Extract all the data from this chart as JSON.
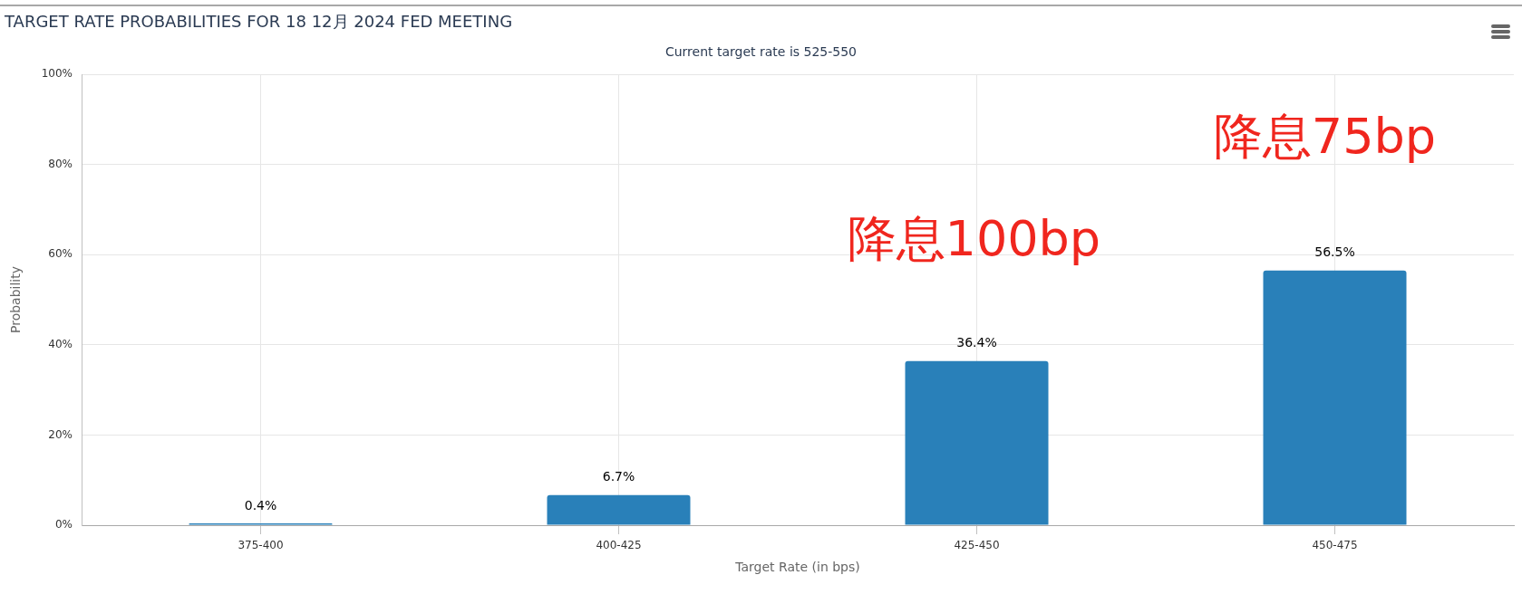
{
  "chart_data": {
    "type": "bar",
    "title": "TARGET RATE PROBABILITIES FOR 18 12月 2024 FED MEETING",
    "subtitle": "Current target rate is 525-550",
    "xlabel": "Target Rate (in bps)",
    "ylabel": "Probability",
    "categories": [
      "375-400",
      "400-425",
      "425-450",
      "450-475"
    ],
    "values": [
      0.4,
      6.7,
      36.4,
      56.5
    ],
    "color": "#2980b9",
    "value_labels": [
      "0.4%",
      "6.7%",
      "36.4%",
      "56.5%"
    ],
    "ylim": [
      0,
      100
    ],
    "yticks": [
      {
        "value": 0,
        "label": "0%"
      },
      {
        "value": 20,
        "label": "20%"
      },
      {
        "value": 40,
        "label": "40%"
      },
      {
        "value": 60,
        "label": "60%"
      },
      {
        "value": 80,
        "label": "80%"
      },
      {
        "value": 100,
        "label": "100%"
      }
    ],
    "grid": true,
    "annotations": [
      "降息100bp",
      "降息75bp"
    ]
  }
}
